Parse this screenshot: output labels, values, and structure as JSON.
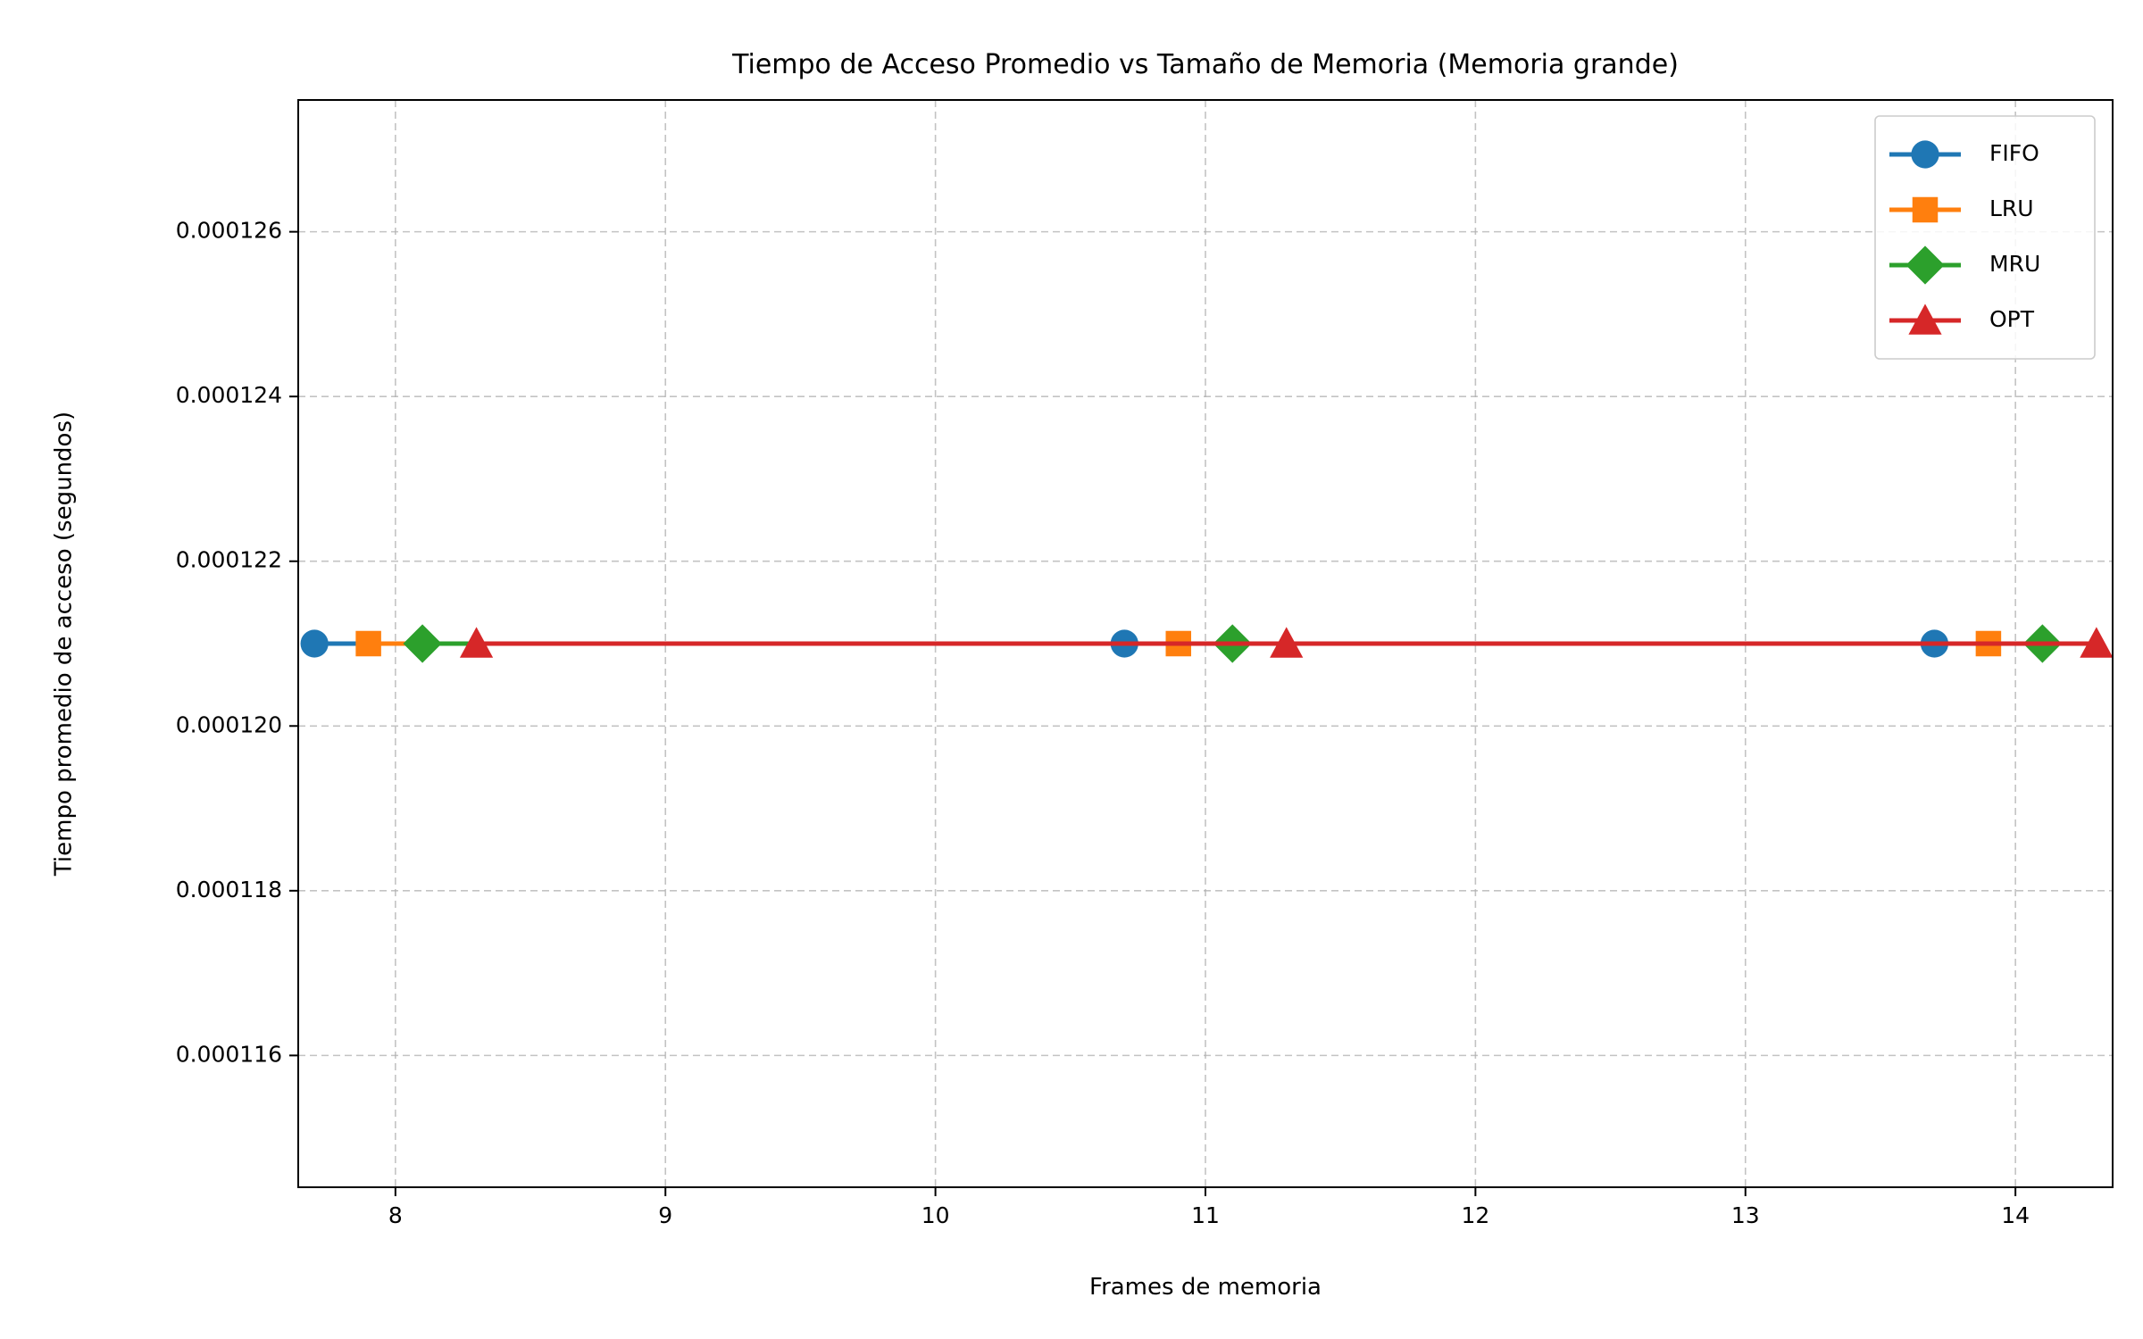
{
  "chart_data": {
    "type": "line",
    "title": "Tiempo de Acceso Promedio vs Tamaño de Memoria (Memoria grande)",
    "xlabel": "Frames de memoria",
    "ylabel": "Tiempo promedio de acceso (segundos)",
    "xlim": [
      7.64,
      14.36
    ],
    "ylim": [
      0.0001144,
      0.0001276
    ],
    "xticks": [
      8,
      9,
      10,
      11,
      12,
      13,
      14
    ],
    "xtick_labels": [
      "8",
      "9",
      "10",
      "11",
      "12",
      "13",
      "14"
    ],
    "yticks": [
      0.000116,
      0.000118,
      0.00012,
      0.000122,
      0.000124,
      0.000126
    ],
    "ytick_labels": [
      "0.000116",
      "0.000118",
      "0.000120",
      "0.000122",
      "0.000124",
      "0.000126"
    ],
    "grid": true,
    "grid_style": "dashed",
    "legend_position": "top-right",
    "series": [
      {
        "name": "FIFO",
        "color": "#1f77b4",
        "marker": "circle",
        "x": [
          7.7,
          10.7,
          13.7
        ],
        "y": [
          0.000121,
          0.000121,
          0.000121
        ]
      },
      {
        "name": "LRU",
        "color": "#ff7f0e",
        "marker": "square",
        "x": [
          7.9,
          10.9,
          13.9
        ],
        "y": [
          0.000121,
          0.000121,
          0.000121
        ]
      },
      {
        "name": "MRU",
        "color": "#2ca02c",
        "marker": "diamond",
        "x": [
          8.1,
          11.1,
          14.1
        ],
        "y": [
          0.000121,
          0.000121,
          0.000121
        ]
      },
      {
        "name": "OPT",
        "color": "#d62728",
        "marker": "triangle",
        "x": [
          8.3,
          11.3,
          14.3
        ],
        "y": [
          0.000121,
          0.000121,
          0.000121
        ]
      }
    ]
  }
}
